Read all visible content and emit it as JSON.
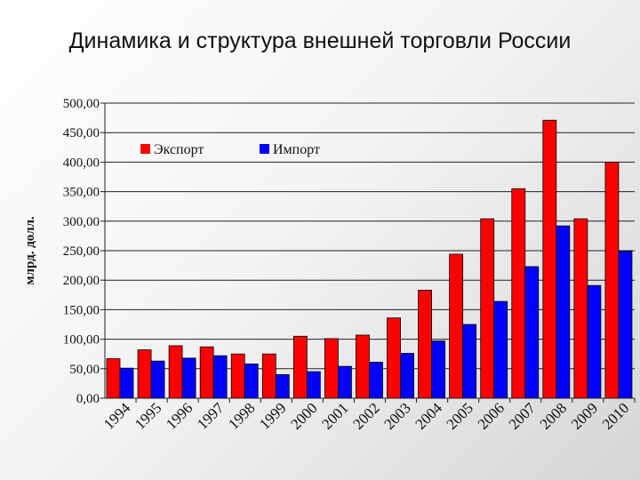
{
  "title": "Динамика и структура внешней торговли России",
  "colors": {
    "export": "#ff0000",
    "import": "#0000ff"
  },
  "chart_data": {
    "type": "bar",
    "ylabel": "млрд. долл.",
    "xlabel": "",
    "ylim": [
      0,
      500
    ],
    "ytick_step": 50,
    "ytick_labels": [
      "0,00",
      "50,00",
      "100,00",
      "150,00",
      "200,00",
      "250,00",
      "300,00",
      "350,00",
      "400,00",
      "450,00",
      "500,00"
    ],
    "grid": true,
    "legend_position": "top-center",
    "categories": [
      "1994",
      "1995",
      "1996",
      "1997",
      "1998",
      "1999",
      "2000",
      "2001",
      "2002",
      "2003",
      "2004",
      "2005",
      "2006",
      "2007",
      "2008",
      "2009",
      "2010"
    ],
    "series": [
      {
        "name": "Экспорт",
        "color": "#ff0000",
        "values": [
          67,
          82,
          89,
          87,
          75,
          75,
          105,
          101,
          107,
          136,
          183,
          244,
          304,
          355,
          471,
          304,
          400
        ]
      },
      {
        "name": "Импорт",
        "color": "#0000ff",
        "values": [
          51,
          63,
          68,
          72,
          58,
          40,
          45,
          54,
          61,
          76,
          97,
          125,
          164,
          223,
          292,
          191,
          249
        ]
      }
    ]
  }
}
